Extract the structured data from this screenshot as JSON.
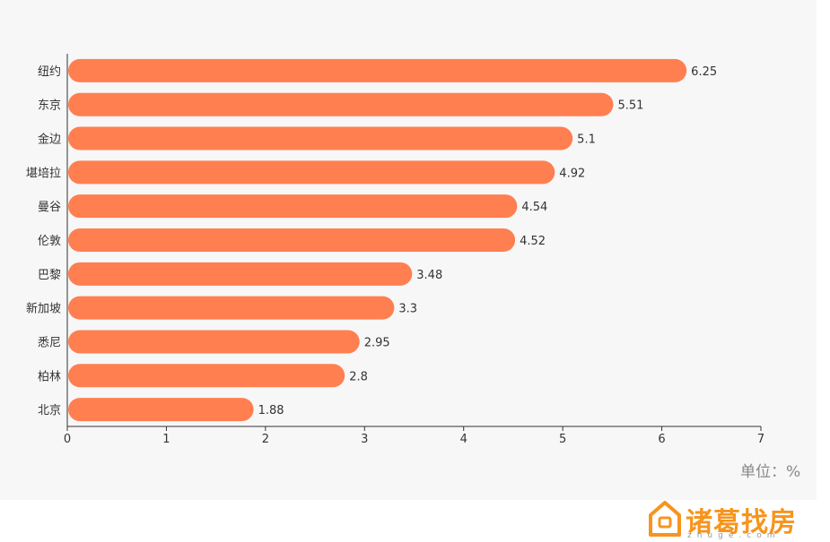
{
  "chart_data": {
    "type": "bar",
    "orientation": "horizontal",
    "categories": [
      "纽约",
      "东京",
      "金边",
      "堪培拉",
      "曼谷",
      "伦敦",
      "巴黎",
      "新加坡",
      "悉尼",
      "柏林",
      "北京"
    ],
    "values": [
      6.25,
      5.51,
      5.1,
      4.92,
      4.54,
      4.52,
      3.48,
      3.3,
      2.95,
      2.8,
      1.88
    ],
    "value_labels": [
      "6.25",
      "5.51",
      "5.1",
      "4.92",
      "4.54",
      "4.52",
      "3.48",
      "3.3",
      "2.95",
      "2.8",
      "1.88"
    ],
    "xlim": [
      0,
      7
    ],
    "xticks": [
      "0",
      "1",
      "2",
      "3",
      "4",
      "5",
      "6",
      "7"
    ],
    "unit_label": "单位：%",
    "bar_color": "#ff7f50",
    "grid": false
  },
  "brand": {
    "name": "诸葛找房",
    "url": "zhuge.com",
    "color": "#f7941d",
    "icon": "house-logo-icon"
  }
}
